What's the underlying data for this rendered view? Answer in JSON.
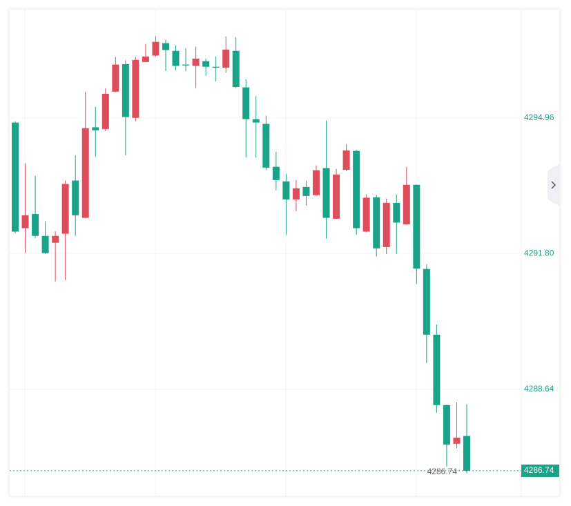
{
  "chart_data": {
    "type": "candlestick",
    "up_color": "#de4d5b",
    "down_color": "#1ba389",
    "ylim": [
      4286.16,
      4297.48
    ],
    "yticks": [
      4288.64,
      {
        "value": 4291.8,
        "label": "4291.80"
      },
      4294.96
    ],
    "grid": true,
    "last_price": 4286.74,
    "open": [
      4294.85,
      4292.39,
      4292.72,
      4292.21,
      4292.05,
      4292.26,
      4293.5,
      4292.63,
      4294.74,
      4294.7,
      4295.57,
      4296.21,
      4294.96,
      4296.26,
      4296.41,
      4296.7,
      4296.52,
      4296.2,
      4296.17,
      4296.28,
      4296.15,
      4296.13,
      4296.52,
      4295.67,
      4294.93,
      4294.82,
      4293.82,
      4293.48,
      4293.06,
      4293.35,
      4293.16,
      4293.79,
      4292.61,
      4293.75,
      4294.19,
      4292.31,
      4293.11,
      4291.95,
      4292.98,
      4292.48,
      4293.4,
      4291.44,
      4289.91,
      4288.27,
      4287.37,
      4287.55
    ],
    "high": [
      4294.88,
      4293.9,
      4293.61,
      4292.55,
      4292.32,
      4293.5,
      4294.09,
      4295.56,
      4295.22,
      4295.65,
      4296.38,
      4296.3,
      4296.38,
      4296.68,
      4296.86,
      4296.78,
      4296.65,
      4296.58,
      4296.62,
      4296.34,
      4296.39,
      4296.86,
      4296.84,
      4295.86,
      4295.47,
      4295.01,
      4294.17,
      4293.66,
      4293.51,
      4293.5,
      4293.85,
      4294.9,
      4293.77,
      4294.35,
      4294.22,
      4293.18,
      4293.16,
      4293.08,
      4293.18,
      4293.82,
      4293.41,
      4291.55,
      4290.15,
      4288.28,
      4288.33,
      4288.29
    ],
    "low": [
      4292.27,
      4291.82,
      4292.16,
      4291.79,
      4291.15,
      4291.18,
      4292.21,
      4292.62,
      4294.06,
      4294.65,
      4295.56,
      4294.09,
      4294.88,
      4296.25,
      4296.39,
      4296.05,
      4296.07,
      4296.05,
      4295.65,
      4295.94,
      4295.81,
      4296.01,
      4295.65,
      4294.03,
      4294.03,
      4293.74,
      4293.27,
      4292.23,
      4292.79,
      4292.92,
      4293.13,
      4292.15,
      4292.6,
      4293.72,
      4292.24,
      4292.29,
      4291.73,
      4291.79,
      4291.79,
      4292.47,
      4291.09,
      4289.25,
      4288.09,
      4286.84,
      4287.27,
      4286.68
    ],
    "close": [
      4292.31,
      4292.69,
      4292.21,
      4291.81,
      4292.21,
      4293.42,
      4292.69,
      4294.72,
      4294.67,
      4295.52,
      4296.2,
      4294.98,
      4296.31,
      4296.39,
      4296.73,
      4296.54,
      4296.17,
      4296.18,
      4296.34,
      4296.15,
      4296.13,
      4296.55,
      4295.68,
      4294.93,
      4294.85,
      4293.8,
      4293.51,
      4293.06,
      4293.32,
      4293.14,
      4293.74,
      4292.63,
      4293.64,
      4294.2,
      4292.39,
      4293.1,
      4291.92,
      4292.98,
      4292.52,
      4293.4,
      4291.45,
      4289.91,
      4288.27,
      4287.35,
      4287.51,
      4286.74
    ]
  }
}
